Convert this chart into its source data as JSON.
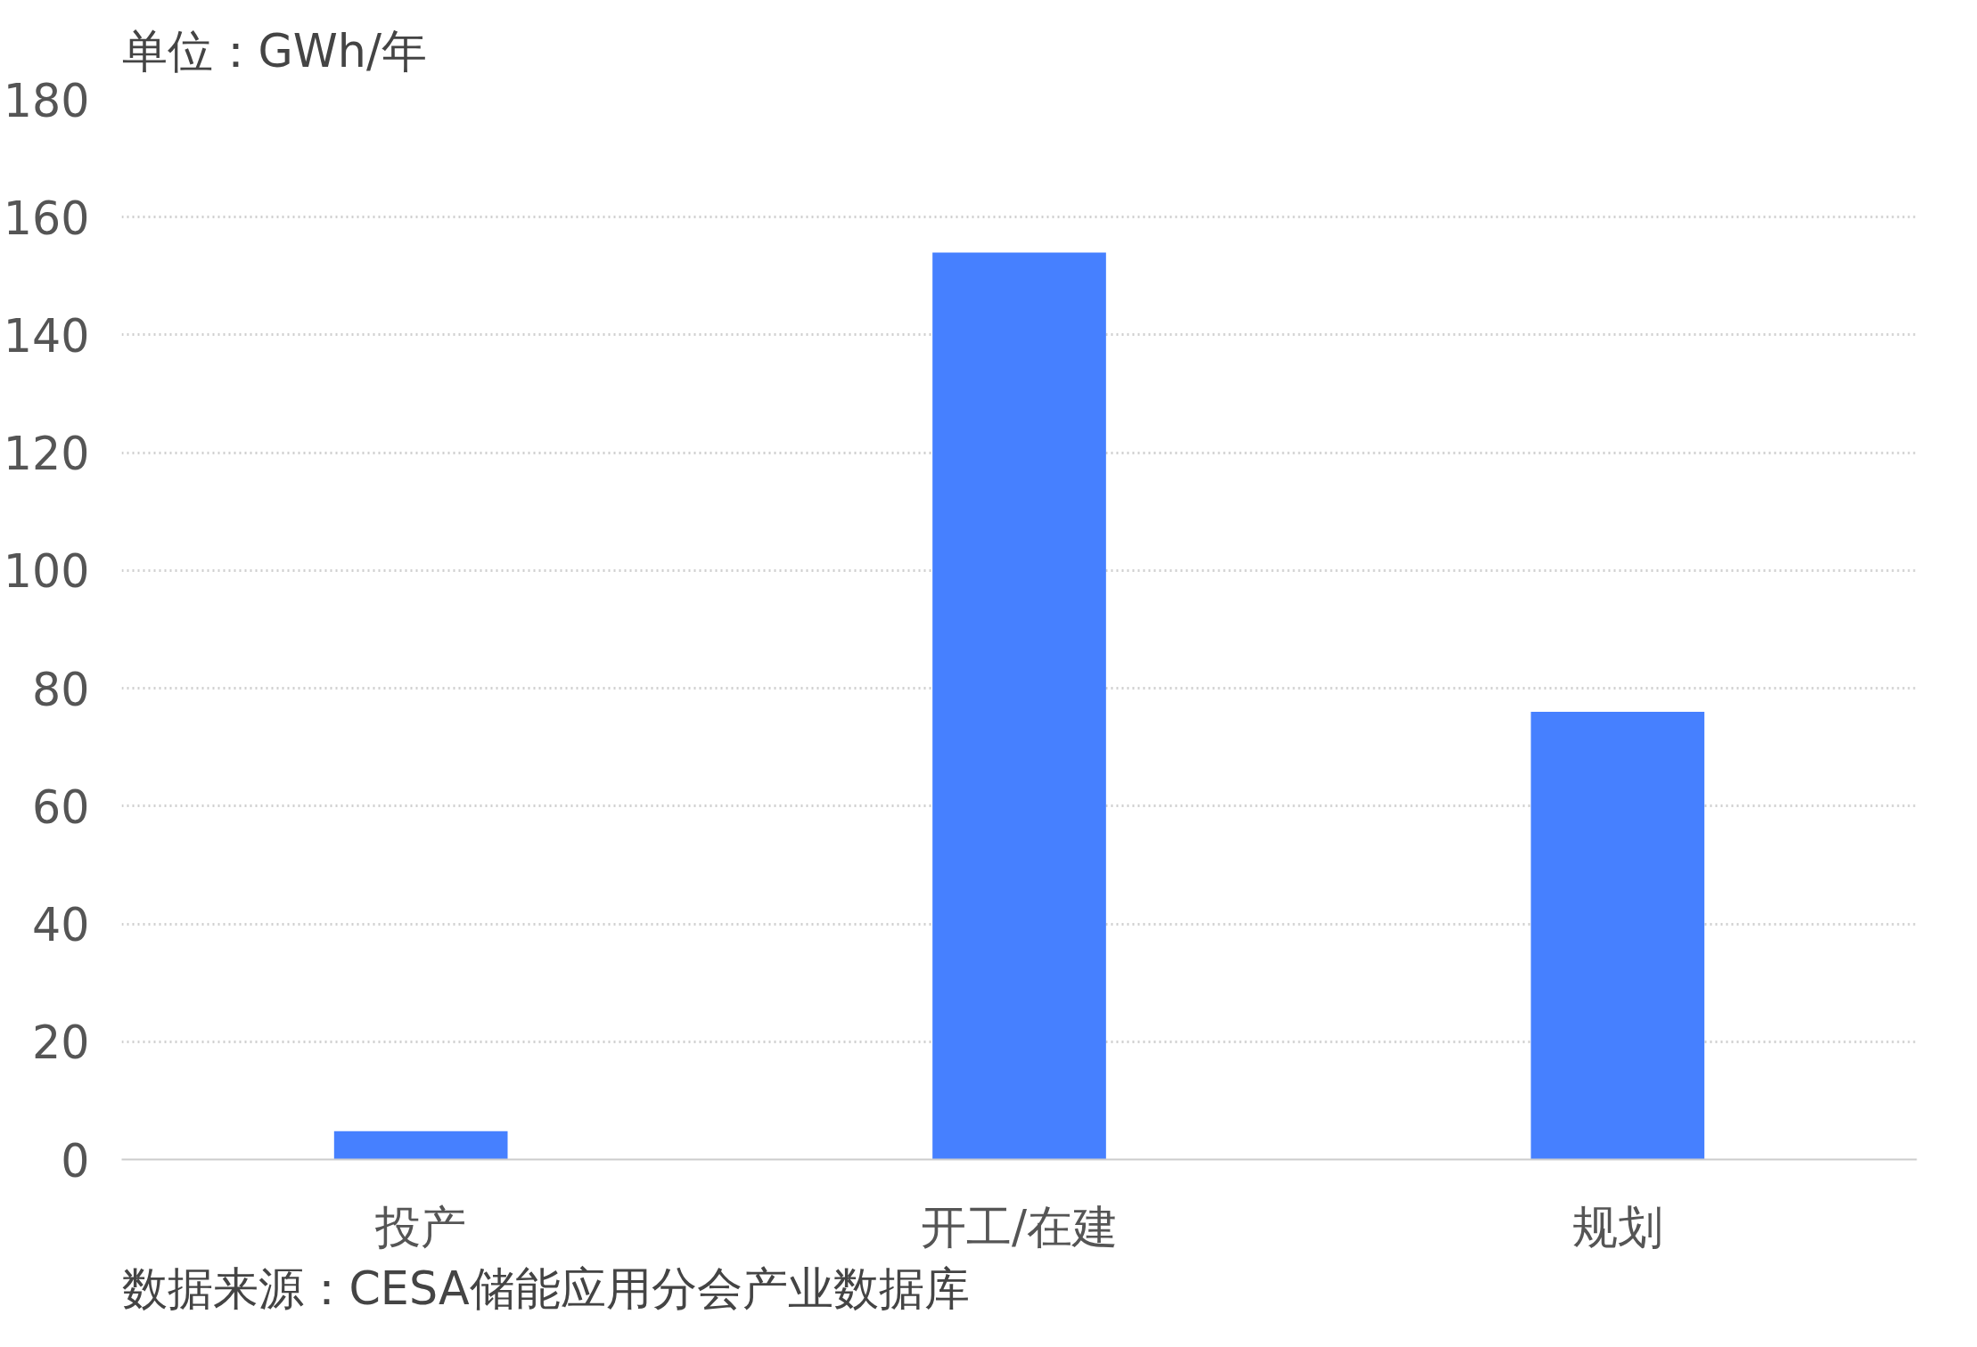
{
  "chart_data": {
    "type": "bar",
    "ylabel": "单位：GWh/年",
    "categories": [
      "投产",
      "开工/在建",
      "规划"
    ],
    "values": [
      4.8,
      154,
      76
    ],
    "color": "#4680ff",
    "ylim": [
      0,
      180
    ],
    "yticks": [
      0,
      20,
      40,
      60,
      80,
      100,
      120,
      140,
      160,
      180
    ],
    "grid": "y",
    "annotations": [
      "数据来源：CESA储能应用分会产业数据库"
    ]
  }
}
